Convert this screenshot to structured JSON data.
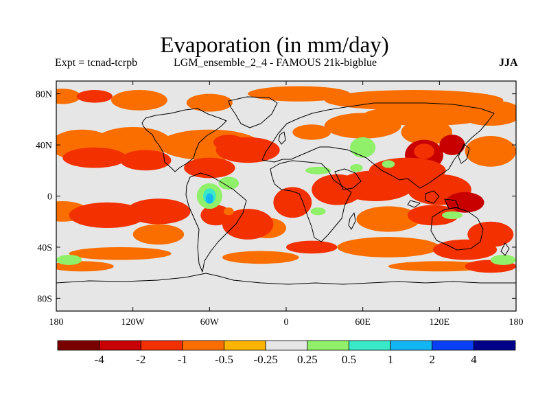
{
  "title": "Evaporation (in mm/day)",
  "subtitle_left": "Expt = tcnad-tcrpb",
  "subtitle_center": "LGM_ensemble_2_4 - FAMOUS 21k-bigblue",
  "season": "JJA",
  "lat_ticks": [
    {
      "label": "80N",
      "lat": 80
    },
    {
      "label": "40N",
      "lat": 40
    },
    {
      "label": "0",
      "lat": 0
    },
    {
      "label": "40S",
      "lat": -40
    },
    {
      "label": "80S",
      "lat": -80
    }
  ],
  "lon_ticks": [
    {
      "label": "180",
      "lon": -180
    },
    {
      "label": "120W",
      "lon": -120
    },
    {
      "label": "60W",
      "lon": -60
    },
    {
      "label": "0",
      "lon": 0
    },
    {
      "label": "60E",
      "lon": 60
    },
    {
      "label": "120E",
      "lon": 120
    },
    {
      "label": "180",
      "lon": 180
    }
  ],
  "map_extent": {
    "lon": [
      -180,
      180
    ],
    "lat": [
      -90,
      90
    ]
  },
  "colorbar": {
    "colors": [
      "#7a0000",
      "#c80000",
      "#f23000",
      "#fa6e00",
      "#fbb400",
      "#e6e6e6",
      "#90f06a",
      "#38e8c8",
      "#12b6f2",
      "#0a40f5",
      "#000088"
    ],
    "labels": [
      "-4",
      "-2",
      "-1",
      "-0.5",
      "-0.25",
      "0.25",
      "0.5",
      "1",
      "2",
      "4"
    ]
  },
  "colors": {
    "background": "#e6e6e6",
    "coastline": "#000000"
  },
  "field_blobs": [
    {
      "lon": -175,
      "lat": 78,
      "rx": 14,
      "ry": 6,
      "level": 3
    },
    {
      "lon": -150,
      "lat": 78,
      "rx": 14,
      "ry": 5,
      "level": 2
    },
    {
      "lon": -115,
      "lat": 75,
      "rx": 22,
      "ry": 8,
      "level": 3
    },
    {
      "lon": -60,
      "lat": 73,
      "rx": 18,
      "ry": 7,
      "level": 3
    },
    {
      "lon": 10,
      "lat": 80,
      "rx": 40,
      "ry": 6,
      "level": 3
    },
    {
      "lon": 100,
      "lat": 75,
      "rx": 70,
      "ry": 8,
      "level": 3
    },
    {
      "lon": 110,
      "lat": 63,
      "rx": 50,
      "ry": 8,
      "level": 3
    },
    {
      "lon": 160,
      "lat": 65,
      "rx": 25,
      "ry": 10,
      "level": 3
    },
    {
      "lon": -160,
      "lat": 40,
      "rx": 25,
      "ry": 12,
      "level": 3
    },
    {
      "lon": -120,
      "lat": 42,
      "rx": 30,
      "ry": 12,
      "level": 3
    },
    {
      "lon": -60,
      "lat": 40,
      "rx": 40,
      "ry": 12,
      "level": 3
    },
    {
      "lon": -30,
      "lat": 36,
      "rx": 25,
      "ry": 10,
      "level": 2
    },
    {
      "lon": -150,
      "lat": 30,
      "rx": 25,
      "ry": 8,
      "level": 2
    },
    {
      "lon": -110,
      "lat": 28,
      "rx": 20,
      "ry": 8,
      "level": 2
    },
    {
      "lon": -60,
      "lat": 22,
      "rx": 20,
      "ry": 8,
      "level": 2
    },
    {
      "lon": 160,
      "lat": 35,
      "rx": 20,
      "ry": 12,
      "level": 3
    },
    {
      "lon": 60,
      "lat": 55,
      "rx": 30,
      "ry": 10,
      "level": 3
    },
    {
      "lon": 110,
      "lat": 50,
      "rx": 20,
      "ry": 10,
      "level": 3
    },
    {
      "lon": 20,
      "lat": 50,
      "rx": 15,
      "ry": 6,
      "level": 3
    },
    {
      "lon": 108,
      "lat": 32,
      "rx": 15,
      "ry": 12,
      "level": 1
    },
    {
      "lon": 130,
      "lat": 40,
      "rx": 10,
      "ry": 8,
      "level": 1
    },
    {
      "lon": 95,
      "lat": 20,
      "rx": 30,
      "ry": 10,
      "level": 2
    },
    {
      "lon": 70,
      "lat": 8,
      "rx": 30,
      "ry": 12,
      "level": 2
    },
    {
      "lon": 40,
      "lat": 5,
      "rx": 20,
      "ry": 12,
      "level": 2
    },
    {
      "lon": 120,
      "lat": 5,
      "rx": 25,
      "ry": 12,
      "level": 2
    },
    {
      "lon": 140,
      "lat": -5,
      "rx": 15,
      "ry": 8,
      "level": 1
    },
    {
      "lon": 5,
      "lat": -5,
      "rx": 15,
      "ry": 12,
      "level": 2
    },
    {
      "lon": -15,
      "lat": -25,
      "rx": 15,
      "ry": 8,
      "level": 3
    },
    {
      "lon": -175,
      "lat": -12,
      "rx": 20,
      "ry": 8,
      "level": 3
    },
    {
      "lon": -140,
      "lat": -15,
      "rx": 30,
      "ry": 10,
      "level": 2
    },
    {
      "lon": -100,
      "lat": -12,
      "rx": 25,
      "ry": 10,
      "level": 2
    },
    {
      "lon": -100,
      "lat": -30,
      "rx": 20,
      "ry": 8,
      "level": 3
    },
    {
      "lon": -55,
      "lat": -15,
      "rx": 12,
      "ry": 8,
      "level": 2
    },
    {
      "lon": -30,
      "lat": -22,
      "rx": 20,
      "ry": 12,
      "level": 2
    },
    {
      "lon": 80,
      "lat": -18,
      "rx": 25,
      "ry": 10,
      "level": 3
    },
    {
      "lon": 115,
      "lat": -15,
      "rx": 20,
      "ry": 8,
      "level": 2
    },
    {
      "lon": 160,
      "lat": -30,
      "rx": 18,
      "ry": 10,
      "level": 2
    },
    {
      "lon": 80,
      "lat": -40,
      "rx": 40,
      "ry": 8,
      "level": 3
    },
    {
      "lon": 140,
      "lat": -42,
      "rx": 25,
      "ry": 8,
      "level": 2
    },
    {
      "lon": -130,
      "lat": -45,
      "rx": 40,
      "ry": 5,
      "level": 3
    },
    {
      "lon": -20,
      "lat": -48,
      "rx": 30,
      "ry": 5,
      "level": 3
    },
    {
      "lon": 20,
      "lat": -40,
      "rx": 20,
      "ry": 5,
      "level": 2
    },
    {
      "lon": 120,
      "lat": -55,
      "rx": 40,
      "ry": 4,
      "level": 3
    },
    {
      "lon": -160,
      "lat": -55,
      "rx": 25,
      "ry": 4,
      "level": 3
    },
    {
      "lon": 160,
      "lat": -55,
      "rx": 20,
      "ry": 5,
      "level": 2
    },
    {
      "lon": -45,
      "lat": 42,
      "rx": 12,
      "ry": 6,
      "level": 2
    },
    {
      "lon": 60,
      "lat": 38,
      "rx": 10,
      "ry": 8,
      "level": 6
    },
    {
      "lon": 108,
      "lat": 35,
      "rx": 8,
      "ry": 6,
      "level": 2
    },
    {
      "lon": -45,
      "lat": 10,
      "rx": 8,
      "ry": 5,
      "level": 6
    },
    {
      "lon": -60,
      "lat": 0,
      "rx": 10,
      "ry": 10,
      "level": 6
    },
    {
      "lon": -60,
      "lat": 0,
      "rx": 5,
      "ry": 6,
      "level": 7
    },
    {
      "lon": -60,
      "lat": -2,
      "rx": 3,
      "ry": 4,
      "level": 8
    },
    {
      "lon": -45,
      "lat": -12,
      "rx": 4,
      "ry": 3,
      "level": 3
    },
    {
      "lon": 25,
      "lat": 20,
      "rx": 10,
      "ry": 3,
      "level": 6
    },
    {
      "lon": 55,
      "lat": 22,
      "rx": 5,
      "ry": 3,
      "level": 6
    },
    {
      "lon": 80,
      "lat": 25,
      "rx": 5,
      "ry": 3,
      "level": 6
    },
    {
      "lon": 25,
      "lat": -12,
      "rx": 6,
      "ry": 3,
      "level": 6
    },
    {
      "lon": 130,
      "lat": -15,
      "rx": 8,
      "ry": 3,
      "level": 6
    },
    {
      "lon": -170,
      "lat": -50,
      "rx": 10,
      "ry": 4,
      "level": 6
    },
    {
      "lon": 170,
      "lat": -50,
      "rx": 10,
      "ry": 4,
      "level": 6
    }
  ]
}
